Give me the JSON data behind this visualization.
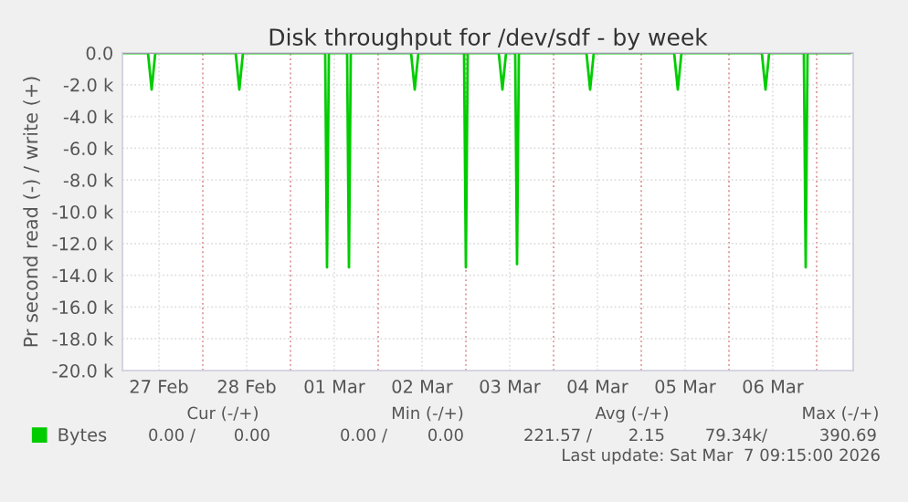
{
  "chart_data": {
    "type": "line",
    "title": "Disk throughput for /dev/sdf - by week",
    "ylabel": "Pr second read (-) / write (+)",
    "xlim": [
      "2026-02-27T02:00",
      "2026-03-07T10:00"
    ],
    "ylim": [
      -20000,
      0
    ],
    "yticks": [
      {
        "value": 0,
        "label": "0.0"
      },
      {
        "value": -2000,
        "label": "-2.0 k"
      },
      {
        "value": -4000,
        "label": "-4.0 k"
      },
      {
        "value": -6000,
        "label": "-6.0 k"
      },
      {
        "value": -8000,
        "label": "-8.0 k"
      },
      {
        "value": -10000,
        "label": "-10.0 k"
      },
      {
        "value": -12000,
        "label": "-12.0 k"
      },
      {
        "value": -14000,
        "label": "-14.0 k"
      },
      {
        "value": -16000,
        "label": "-16.0 k"
      },
      {
        "value": -18000,
        "label": "-18.0 k"
      },
      {
        "value": -20000,
        "label": "-20.0 k"
      }
    ],
    "xticks": [
      {
        "value": "2026-02-27T12:00",
        "label": "27 Feb"
      },
      {
        "value": "2026-02-28T12:00",
        "label": "28 Feb"
      },
      {
        "value": "2026-03-01T12:00",
        "label": "01 Mar"
      },
      {
        "value": "2026-03-02T12:00",
        "label": "02 Mar"
      },
      {
        "value": "2026-03-03T12:00",
        "label": "03 Mar"
      },
      {
        "value": "2026-03-04T12:00",
        "label": "04 Mar"
      },
      {
        "value": "2026-03-05T12:00",
        "label": "05 Mar"
      },
      {
        "value": "2026-03-06T12:00",
        "label": "06 Mar"
      },
      {
        "value": "2026-02-28T00:00",
        "label": null
      },
      {
        "value": "2026-03-01T00:00",
        "label": null
      },
      {
        "value": "2026-03-02T00:00",
        "label": null
      },
      {
        "value": "2026-03-03T00:00",
        "label": null
      },
      {
        "value": "2026-03-04T00:00",
        "label": null
      },
      {
        "value": "2026-03-05T00:00",
        "label": null
      },
      {
        "value": "2026-03-06T00:00",
        "label": null
      },
      {
        "value": "2026-03-07T00:00",
        "label": null
      }
    ],
    "grid": true,
    "legend": "bottom",
    "marker": "none",
    "line_style": "solid",
    "series": [
      {
        "name": "Bytes",
        "color": "#00cc00",
        "x": [
          "2026-02-27T02:00",
          "2026-02-27T09:00",
          "2026-02-27T10:00",
          "2026-02-27T11:00",
          "2026-02-28T09:00",
          "2026-02-28T10:00",
          "2026-02-28T11:00",
          "2026-03-01T09:30",
          "2026-03-01T10:00",
          "2026-03-01T10:30",
          "2026-03-01T15:30",
          "2026-03-01T16:00",
          "2026-03-01T16:30",
          "2026-03-02T09:00",
          "2026-03-02T10:00",
          "2026-03-02T11:00",
          "2026-03-02T23:30",
          "2026-03-03T00:00",
          "2026-03-03T00:30",
          "2026-03-03T09:00",
          "2026-03-03T10:00",
          "2026-03-03T11:00",
          "2026-03-03T13:30",
          "2026-03-03T14:00",
          "2026-03-03T14:30",
          "2026-03-04T09:00",
          "2026-03-04T10:00",
          "2026-03-04T11:00",
          "2026-03-05T09:00",
          "2026-03-05T10:00",
          "2026-03-05T11:00",
          "2026-03-06T09:00",
          "2026-03-06T10:00",
          "2026-03-06T11:00",
          "2026-03-06T20:30",
          "2026-03-06T21:00",
          "2026-03-06T21:30",
          "2026-03-07T09:00"
        ],
        "values": [
          0,
          0,
          -2300,
          0,
          0,
          -2300,
          0,
          0,
          -13500,
          0,
          0,
          -13500,
          0,
          0,
          -2300,
          0,
          0,
          -13500,
          0,
          0,
          -2300,
          0,
          0,
          -13300,
          0,
          0,
          -2300,
          0,
          0,
          -2300,
          0,
          0,
          -2300,
          0,
          0,
          -13500,
          0,
          0
        ]
      }
    ],
    "annotations": [
      "Cur (-/+)",
      "Min (-/+)",
      "Avg (-/+)",
      "Max (-/+)",
      "0.00 /",
      "0.00",
      "0.00 /",
      "0.00",
      "221.57 /",
      "2.15",
      "79.34k/",
      "390.69",
      "Last update: Sat Mar  7 09:15:00 2026"
    ]
  }
}
